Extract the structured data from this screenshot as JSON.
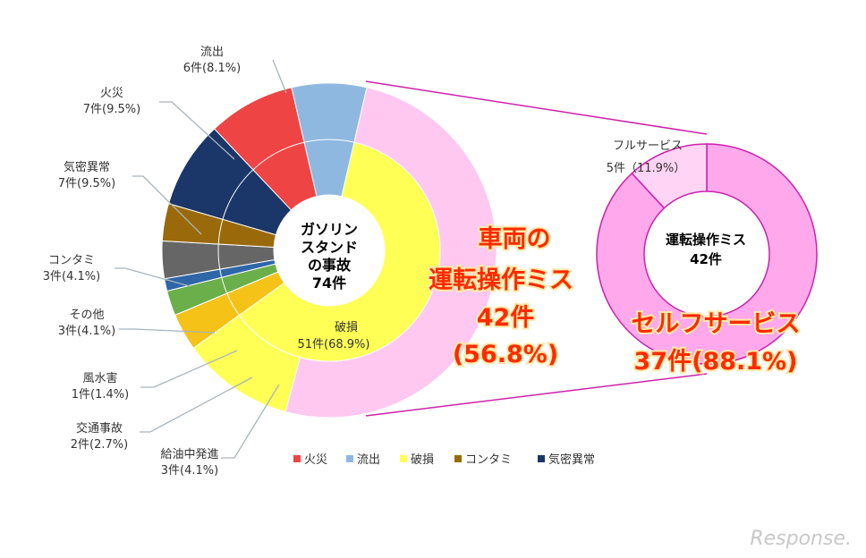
{
  "chart_data": [
    {
      "type": "pie",
      "variant": "donut",
      "center_label": [
        "ガソリン",
        "スタンド",
        "の事故",
        "74件"
      ],
      "slices": [
        {
          "key": "fire",
          "name": "火災",
          "count": "7件",
          "pct": "(9.5%)",
          "value": 7,
          "color": "#ee4444"
        },
        {
          "key": "outflow",
          "name": "流出",
          "count": "6件",
          "pct": "(8.1%)",
          "value": 6,
          "color": "#8fb8e0"
        },
        {
          "key": "damage",
          "name": "破損",
          "count": "51件",
          "pct": "(68.9%)",
          "value": 51,
          "color": "#ffff55"
        },
        {
          "key": "refuel",
          "name": "給油中発進",
          "count": "3件",
          "pct": "(4.1%)",
          "value": 3,
          "color": "#f5c218"
        },
        {
          "key": "traffic",
          "name": "交通事故",
          "count": "2件",
          "pct": "(2.7%)",
          "value": 2,
          "color": "#6aaf4a"
        },
        {
          "key": "storm",
          "name": "風水害",
          "count": "1件",
          "pct": "(1.4%)",
          "value": 1,
          "color": "#2e66a8"
        },
        {
          "key": "other",
          "name": "その他",
          "count": "3件",
          "pct": "(4.1%)",
          "value": 3,
          "color": "#666666"
        },
        {
          "key": "contam",
          "name": "コンタミ",
          "count": "3件",
          "pct": "(4.1%)",
          "value": 3,
          "color": "#9a6a0a"
        },
        {
          "key": "leak",
          "name": "気密異常",
          "count": "7件",
          "pct": "(9.5%)",
          "value": 7,
          "color": "#1b3668"
        }
      ],
      "outer_ring": {
        "name": "運転操作ミス",
        "value": 42,
        "color": "#ffc8f0"
      },
      "legend": [
        "火災",
        "流出",
        "破損",
        "コンタミ",
        "気密異常"
      ],
      "legend_placement": "bottom"
    },
    {
      "type": "pie",
      "variant": "donut",
      "center_label": [
        "運転操作ミス",
        "42件"
      ],
      "slices": [
        {
          "key": "self",
          "name": "セルフサービス",
          "value": 37,
          "color": "#ffa8ec"
        },
        {
          "key": "full",
          "name": "フルサービス",
          "count": "5件",
          "pct": "(11.9%)",
          "value": 5,
          "color": "#ffd4f4"
        }
      ]
    }
  ],
  "callouts": {
    "left": [
      "車両の",
      "運転操作ミス",
      "42件",
      "(56.8%)"
    ],
    "right": [
      "セルフサービス",
      "37件(88.1%)"
    ]
  },
  "damage_inner_label": {
    "name": "破損",
    "text": "51件(68.9%)"
  },
  "full_service_label": {
    "name": "フルサービス",
    "text": "5件（11.9%）"
  },
  "watermark": "Response."
}
